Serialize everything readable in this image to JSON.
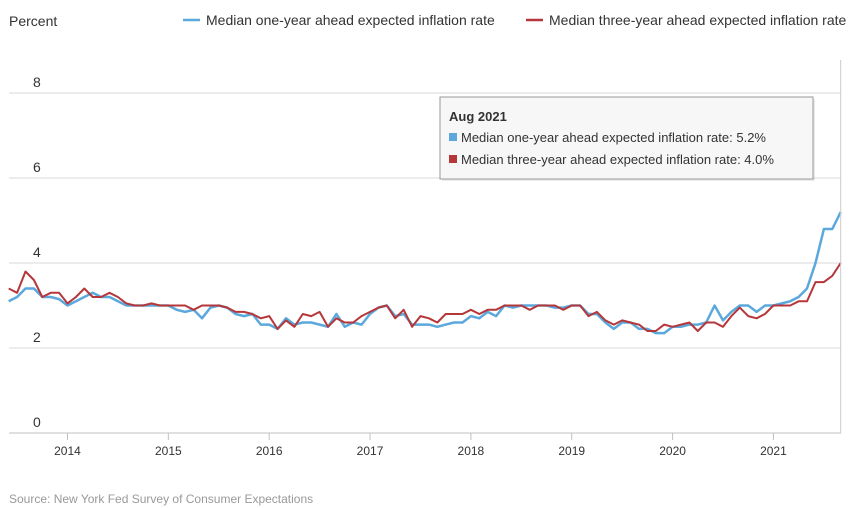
{
  "chart_data": {
    "type": "line",
    "ylabel": "Percent",
    "ylim": [
      0,
      8
    ],
    "yticks": [
      "0",
      "2",
      "4",
      "6",
      "8"
    ],
    "xlim": [
      2013.42,
      2021.67
    ],
    "xticks": [
      "2014",
      "2015",
      "2016",
      "2017",
      "2018",
      "2019",
      "2020",
      "2021"
    ],
    "grid": "horizontal",
    "legend_position": "top",
    "source": "Source: New York Fed Survey of Consumer Expectations",
    "x_start": "2013-06",
    "x_step": "month",
    "series": [
      {
        "name": "Median one-year ahead expected inflation rate",
        "color": "#5ba8dd",
        "values": [
          3.1,
          3.2,
          3.4,
          3.4,
          3.2,
          3.2,
          3.15,
          3.0,
          3.1,
          3.2,
          3.3,
          3.2,
          3.2,
          3.1,
          3.0,
          3.0,
          3.0,
          3.0,
          3.0,
          3.0,
          2.9,
          2.85,
          2.9,
          2.7,
          2.95,
          3.0,
          2.95,
          2.8,
          2.75,
          2.8,
          2.55,
          2.55,
          2.45,
          2.7,
          2.55,
          2.6,
          2.6,
          2.55,
          2.5,
          2.8,
          2.5,
          2.6,
          2.55,
          2.8,
          2.95,
          3.0,
          2.75,
          2.8,
          2.55,
          2.55,
          2.55,
          2.5,
          2.55,
          2.6,
          2.6,
          2.75,
          2.7,
          2.85,
          2.75,
          3.0,
          2.95,
          3.0,
          3.0,
          3.0,
          3.0,
          2.95,
          2.95,
          3.0,
          3.0,
          2.8,
          2.8,
          2.6,
          2.45,
          2.6,
          2.6,
          2.45,
          2.45,
          2.35,
          2.35,
          2.5,
          2.5,
          2.55,
          2.55,
          2.6,
          3.0,
          2.65,
          2.85,
          3.0,
          3.0,
          2.85,
          3.0,
          3.0,
          3.05,
          3.1,
          3.2,
          3.4,
          4.0,
          4.8,
          4.8,
          5.2
        ]
      },
      {
        "name": "Median three-year ahead expected inflation rate",
        "color": "#b5373a",
        "values": [
          3.4,
          3.3,
          3.8,
          3.6,
          3.2,
          3.3,
          3.3,
          3.05,
          3.2,
          3.4,
          3.2,
          3.2,
          3.3,
          3.2,
          3.05,
          3.0,
          3.0,
          3.05,
          3.0,
          3.0,
          3.0,
          3.0,
          2.9,
          3.0,
          3.0,
          3.0,
          2.95,
          2.85,
          2.85,
          2.8,
          2.7,
          2.75,
          2.45,
          2.65,
          2.5,
          2.8,
          2.75,
          2.85,
          2.5,
          2.7,
          2.6,
          2.6,
          2.75,
          2.85,
          2.95,
          3.0,
          2.7,
          2.9,
          2.5,
          2.75,
          2.7,
          2.6,
          2.8,
          2.8,
          2.8,
          2.9,
          2.8,
          2.9,
          2.9,
          3.0,
          3.0,
          3.0,
          2.9,
          3.0,
          3.0,
          3.0,
          2.9,
          3.0,
          3.0,
          2.75,
          2.85,
          2.65,
          2.55,
          2.65,
          2.6,
          2.55,
          2.4,
          2.4,
          2.55,
          2.5,
          2.55,
          2.6,
          2.4,
          2.6,
          2.6,
          2.5,
          2.75,
          2.95,
          2.75,
          2.7,
          2.8,
          3.0,
          3.0,
          3.0,
          3.1,
          3.1,
          3.55,
          3.55,
          3.7,
          4.0
        ]
      }
    ],
    "tooltip": {
      "title": "Aug 2021",
      "rows": [
        {
          "label": "Median one-year ahead expected inflation rate: 5.2%",
          "color": "#5ba8dd"
        },
        {
          "label": "Median three-year ahead expected inflation rate: 4.0%",
          "color": "#b5373a"
        }
      ]
    }
  }
}
